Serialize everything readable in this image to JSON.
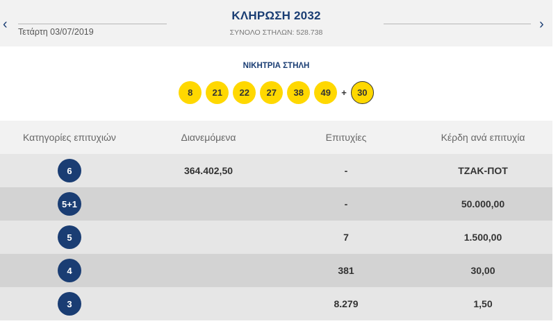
{
  "header": {
    "prev_icon": "chevron-left-icon",
    "next_icon": "chevron-right-icon",
    "prev_glyph": "‹",
    "next_glyph": "›",
    "date": "Τετάρτη 03/07/2019",
    "title": "ΚΛΗΡΩΣΗ 2032",
    "columns_total": "ΣΥΝΟΛΟ ΣΤΗΛΩΝ: 528.738"
  },
  "winning": {
    "label": "ΝΙΚΗΤΡΙΑ ΣΤΗΛΗ",
    "numbers": [
      "8",
      "21",
      "22",
      "27",
      "38",
      "49"
    ],
    "plus": "+",
    "joker": "30"
  },
  "table": {
    "headers": {
      "category": "Κατηγορίες επιτυχιών",
      "distributed": "Διανεμόμενα",
      "winners": "Επιτυχίες",
      "prize": "Κέρδη ανά επιτυχία"
    },
    "rows": [
      {
        "category": "6",
        "distributed": "364.402,50",
        "winners": "-",
        "prize": "ΤΖΑΚ-ΠΟΤ"
      },
      {
        "category": "5+1",
        "distributed": "",
        "winners": "-",
        "prize": "50.000,00"
      },
      {
        "category": "5",
        "distributed": "",
        "winners": "7",
        "prize": "1.500,00"
      },
      {
        "category": "4",
        "distributed": "",
        "winners": "381",
        "prize": "30,00"
      },
      {
        "category": "3",
        "distributed": "",
        "winners": "8.279",
        "prize": "1,50"
      }
    ]
  },
  "colors": {
    "accent": "#1a3d73",
    "ball": "#ffd800",
    "row_light": "#e6e6e6",
    "row_dark": "#d3d3d3",
    "header_bg": "#f2f2f2"
  }
}
